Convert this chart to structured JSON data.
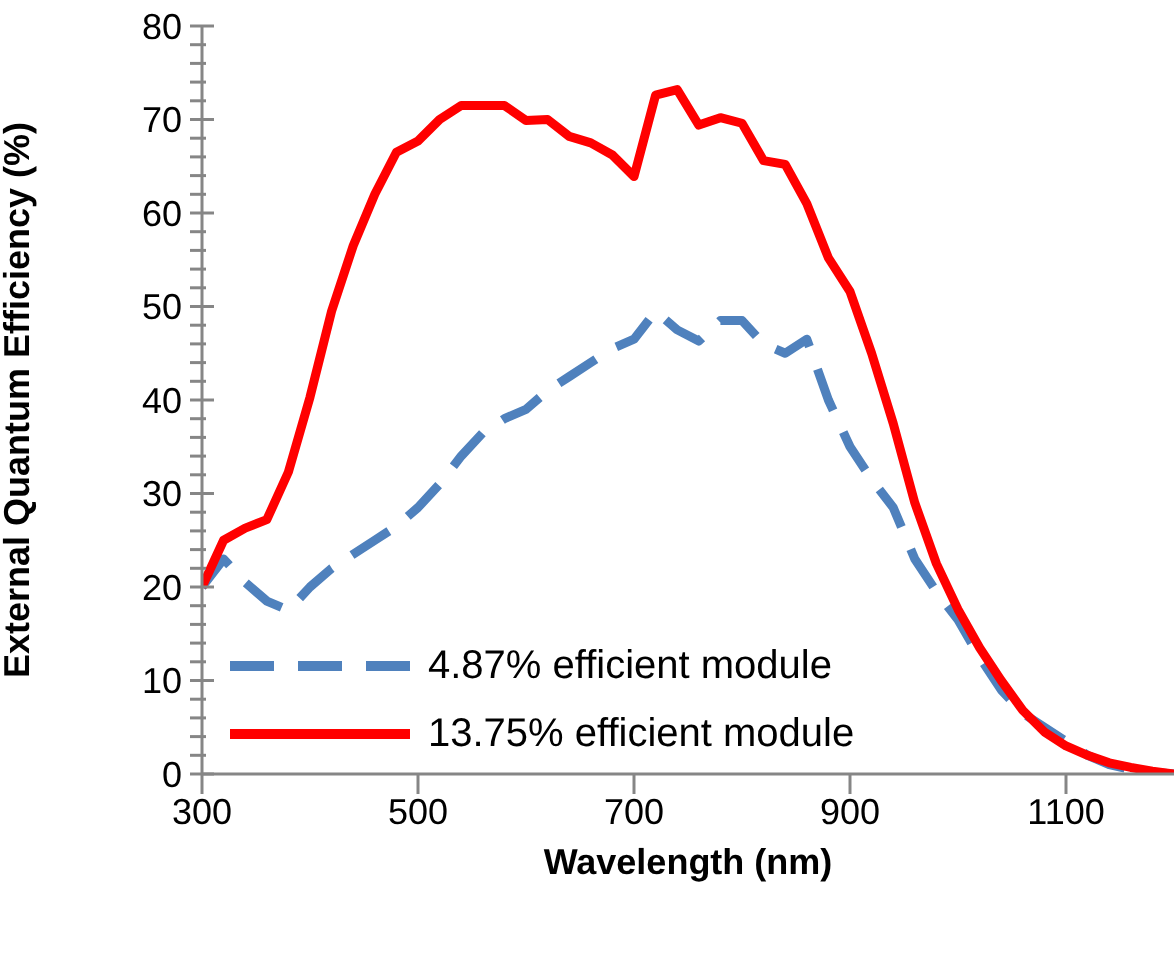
{
  "chart_data": {
    "type": "line",
    "xlabel": "Wavelength (nm)",
    "ylabel": "External Quantum Efficiency (%)",
    "x": [
      300,
      320,
      340,
      360,
      380,
      400,
      420,
      440,
      460,
      480,
      500,
      520,
      540,
      560,
      580,
      600,
      620,
      640,
      660,
      680,
      700,
      720,
      740,
      760,
      780,
      800,
      820,
      840,
      860,
      880,
      900,
      920,
      940,
      960,
      980,
      1000,
      1020,
      1040,
      1060,
      1080,
      1100,
      1120,
      1140,
      1160,
      1180,
      1200
    ],
    "series": [
      {
        "name": "4.87% efficient module",
        "color": "#4f81bd",
        "line_style": "dashed",
        "values": [
          20,
          23,
          20.5,
          18.5,
          17.5,
          20,
          22,
          23.5,
          25,
          26.5,
          28.5,
          31,
          34,
          36.5,
          38,
          39,
          41,
          42.5,
          44,
          45.5,
          46.5,
          49.5,
          47.5,
          46.3,
          48.5,
          48.5,
          46,
          45,
          46.5,
          40,
          35,
          31.5,
          28.5,
          23,
          19.5,
          16.5,
          12.5,
          9,
          6.5,
          5,
          3.5,
          2,
          1,
          0.5,
          0.2,
          0
        ]
      },
      {
        "name": "13.75% efficient module",
        "color": "#ff0000",
        "line_style": "solid",
        "values": [
          20,
          25,
          26.3,
          27.2,
          32.3,
          40.3,
          49.5,
          56.5,
          62,
          66.5,
          67.7,
          70,
          71.5,
          71.5,
          71.5,
          69.9,
          70,
          68.2,
          67.5,
          66.2,
          63.9,
          72.6,
          73.2,
          69.4,
          70.2,
          69.6,
          65.6,
          65.2,
          61,
          55.2,
          51.6,
          45,
          37.5,
          29,
          22.5,
          17.6,
          13.5,
          10,
          6.8,
          4.5,
          3,
          2,
          1.2,
          0.7,
          0.3,
          0
        ]
      }
    ],
    "xlim": [
      300,
      1200
    ],
    "xticks": [
      300,
      500,
      700,
      900,
      1100
    ],
    "ylim": [
      0,
      80
    ],
    "yticks": [
      0,
      {
        "value": 2,
        "label": null
      },
      {
        "value": 4,
        "label": null
      },
      {
        "value": 6,
        "label": null
      },
      {
        "value": 8,
        "label": null
      },
      10,
      {
        "value": 12,
        "label": null
      },
      {
        "value": 14,
        "label": null
      },
      {
        "value": 16,
        "label": null
      },
      {
        "value": 18,
        "label": null
      },
      20,
      {
        "value": 22,
        "label": null
      },
      {
        "value": 24,
        "label": null
      },
      {
        "value": 26,
        "label": null
      },
      {
        "value": 28,
        "label": null
      },
      30,
      {
        "value": 32,
        "label": null
      },
      {
        "value": 34,
        "label": null
      },
      {
        "value": 36,
        "label": null
      },
      {
        "value": 38,
        "label": null
      },
      40,
      {
        "value": 42,
        "label": null
      },
      {
        "value": 44,
        "label": null
      },
      {
        "value": 46,
        "label": null
      },
      {
        "value": 48,
        "label": null
      },
      50,
      {
        "value": 52,
        "label": null
      },
      {
        "value": 54,
        "label": null
      },
      {
        "value": 56,
        "label": null
      },
      {
        "value": 58,
        "label": null
      },
      60,
      {
        "value": 62,
        "label": null
      },
      {
        "value": 64,
        "label": null
      },
      {
        "value": 66,
        "label": null
      },
      {
        "value": 68,
        "label": null
      },
      70,
      {
        "value": 72,
        "label": null
      },
      {
        "value": 74,
        "label": null
      },
      {
        "value": 76,
        "label": null
      },
      {
        "value": 78,
        "label": null
      },
      80
    ],
    "grid": false,
    "legend": "bottom left",
    "marker": "none"
  }
}
